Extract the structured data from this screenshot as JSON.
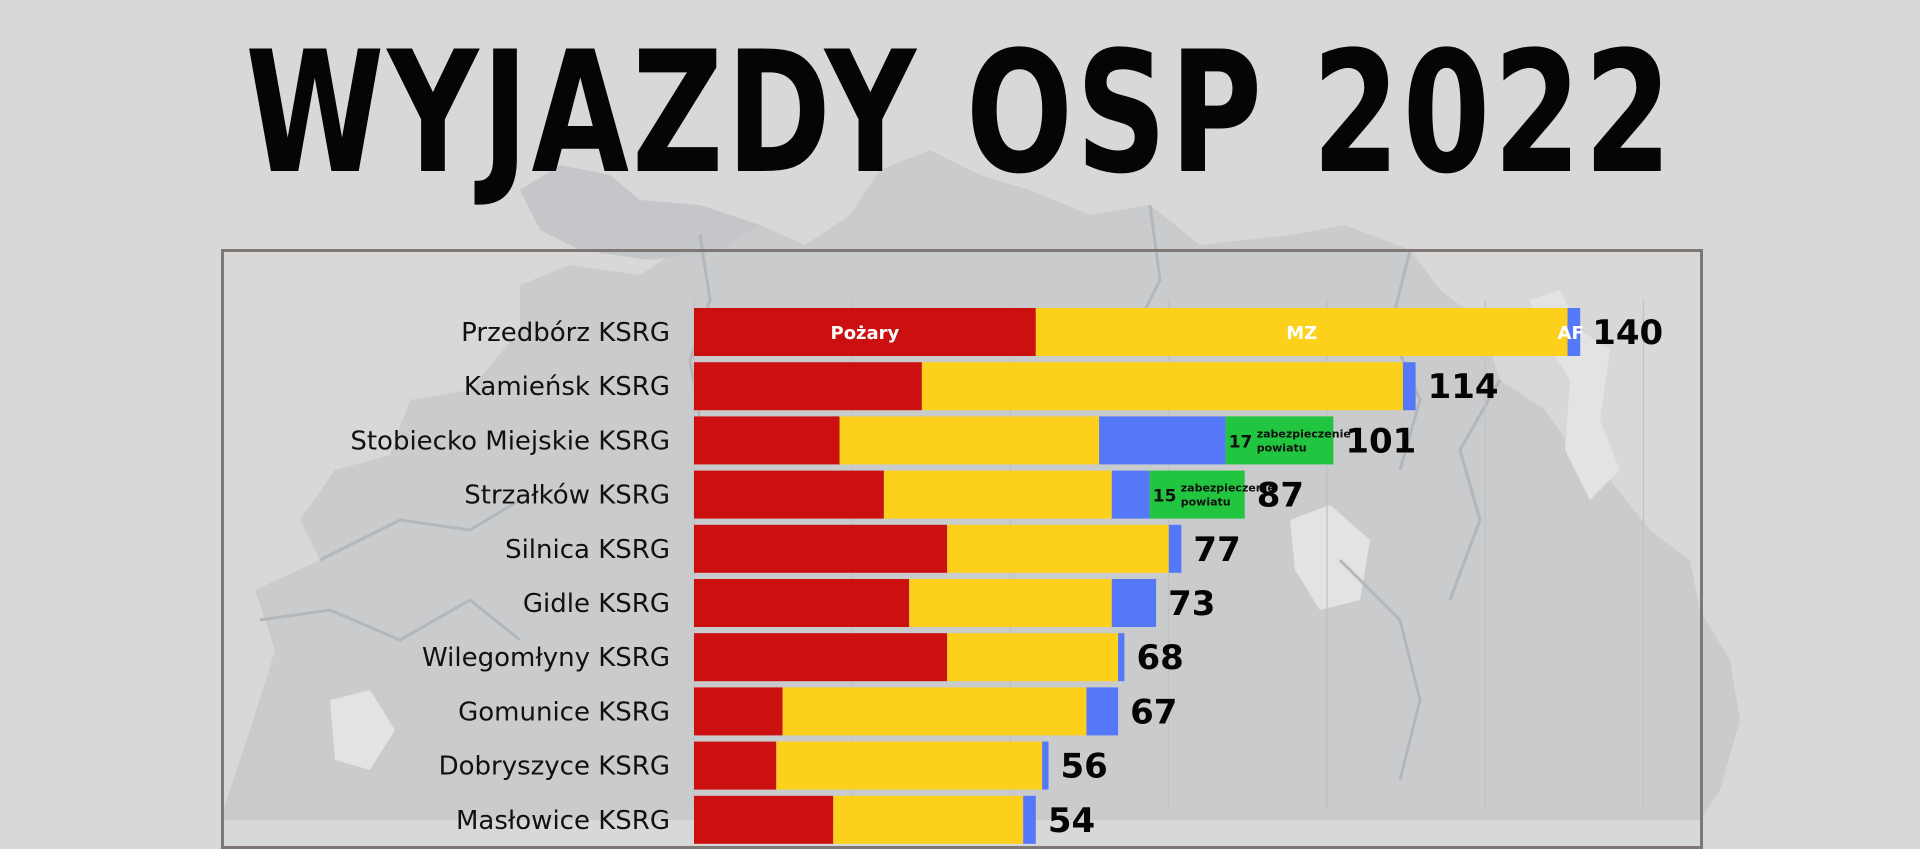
{
  "title": "WYJAZDY OSP 2022",
  "colors": {
    "background": "#d8d8d8",
    "map": "#c9cbcd",
    "map_light": "#e6e6e6",
    "pozary": "#cc1010",
    "mz": "#fdd01c",
    "af": "#5478f8",
    "zabezpieczenie": "#22c53f",
    "frame": "#7f7773"
  },
  "chart_data": {
    "type": "bar",
    "orientation": "horizontal",
    "stacked": true,
    "title": "WYJAZDY OSP 2022",
    "categories": [
      "Przedbórz KSRG",
      "Kamieńsk KSRG",
      "Stobiecko Miejskie KSRG",
      "Strzałków KSRG",
      "Silnica KSRG",
      "Gidle KSRG",
      "Wilegomłyny KSRG",
      "Gomunice KSRG",
      "Dobryszyce KSRG",
      "Masłowice KSRG"
    ],
    "series": [
      {
        "name": "Pożary",
        "color": "#cc1010",
        "values": [
          54,
          36,
          23,
          30,
          40,
          34,
          40,
          14,
          13,
          22
        ]
      },
      {
        "name": "MZ",
        "color": "#fdd01c",
        "values": [
          84,
          76,
          41,
          36,
          35,
          32,
          27,
          48,
          42,
          30
        ]
      },
      {
        "name": "AF",
        "color": "#5478f8",
        "values": [
          2,
          2,
          20,
          6,
          2,
          7,
          1,
          5,
          1,
          2
        ]
      },
      {
        "name": "zabezpieczenie powiatu",
        "color": "#22c53f",
        "values": [
          0,
          0,
          17,
          15,
          0,
          0,
          0,
          0,
          0,
          0
        ]
      }
    ],
    "segment_labels": {
      "pozary_first_row": "Pożary",
      "mz_first_row": "MZ",
      "af_first_row": "AF",
      "green_note": [
        "zabezpieczenie",
        "powiatu"
      ]
    },
    "totals": [
      "140",
      "114",
      "101",
      "87",
      "77",
      "73",
      "68",
      "67",
      "56",
      "54"
    ],
    "xlim": [
      0,
      150
    ],
    "grid": true
  }
}
